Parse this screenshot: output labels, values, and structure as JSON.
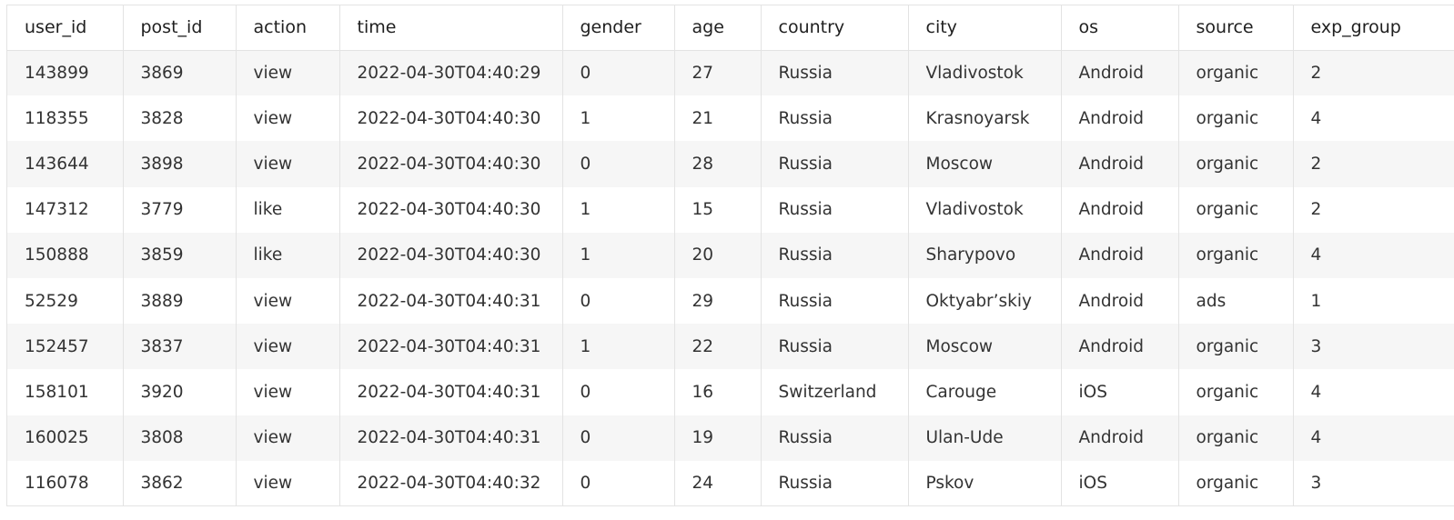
{
  "table": {
    "columns": [
      "user_id",
      "post_id",
      "action",
      "time",
      "gender",
      "age",
      "country",
      "city",
      "os",
      "source",
      "exp_group"
    ],
    "rows": [
      [
        "143899",
        "3869",
        "view",
        "2022-04-30T04:40:29",
        "0",
        "27",
        "Russia",
        "Vladivostok",
        "Android",
        "organic",
        "2"
      ],
      [
        "118355",
        "3828",
        "view",
        "2022-04-30T04:40:30",
        "1",
        "21",
        "Russia",
        "Krasnoyarsk",
        "Android",
        "organic",
        "4"
      ],
      [
        "143644",
        "3898",
        "view",
        "2022-04-30T04:40:30",
        "0",
        "28",
        "Russia",
        "Moscow",
        "Android",
        "organic",
        "2"
      ],
      [
        "147312",
        "3779",
        "like",
        "2022-04-30T04:40:30",
        "1",
        "15",
        "Russia",
        "Vladivostok",
        "Android",
        "organic",
        "2"
      ],
      [
        "150888",
        "3859",
        "like",
        "2022-04-30T04:40:30",
        "1",
        "20",
        "Russia",
        "Sharypovo",
        "Android",
        "organic",
        "4"
      ],
      [
        "52529",
        "3889",
        "view",
        "2022-04-30T04:40:31",
        "0",
        "29",
        "Russia",
        "Oktyabr’skiy",
        "Android",
        "ads",
        "1"
      ],
      [
        "152457",
        "3837",
        "view",
        "2022-04-30T04:40:31",
        "1",
        "22",
        "Russia",
        "Moscow",
        "Android",
        "organic",
        "3"
      ],
      [
        "158101",
        "3920",
        "view",
        "2022-04-30T04:40:31",
        "0",
        "16",
        "Switzerland",
        "Carouge",
        "iOS",
        "organic",
        "4"
      ],
      [
        "160025",
        "3808",
        "view",
        "2022-04-30T04:40:31",
        "0",
        "19",
        "Russia",
        "Ulan-Ude",
        "Android",
        "organic",
        "4"
      ],
      [
        "116078",
        "3862",
        "view",
        "2022-04-30T04:40:32",
        "0",
        "24",
        "Russia",
        "Pskov",
        "iOS",
        "organic",
        "3"
      ]
    ]
  }
}
